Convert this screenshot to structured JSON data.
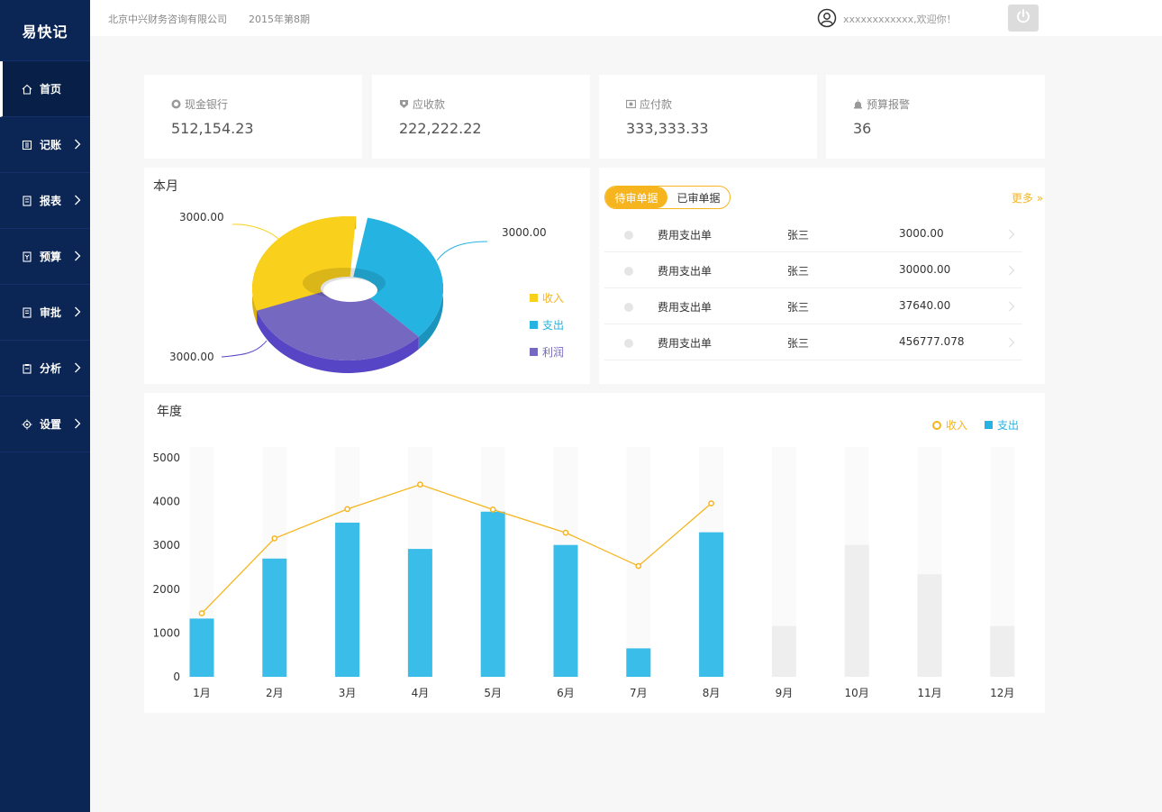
{
  "app": {
    "title": "易快记"
  },
  "sidebar": {
    "items": [
      {
        "label": "首页",
        "icon": "home-icon",
        "active": true,
        "has_chevron": false
      },
      {
        "label": "记账",
        "icon": "ledger-icon",
        "active": false,
        "has_chevron": true
      },
      {
        "label": "报表",
        "icon": "report-icon",
        "active": false,
        "has_chevron": true
      },
      {
        "label": "预算",
        "icon": "budget-icon",
        "active": false,
        "has_chevron": true
      },
      {
        "label": "审批",
        "icon": "approval-icon",
        "active": false,
        "has_chevron": true
      },
      {
        "label": "分析",
        "icon": "analysis-icon",
        "active": false,
        "has_chevron": true
      },
      {
        "label": "设置",
        "icon": "gear-icon",
        "active": false,
        "has_chevron": true
      }
    ]
  },
  "header": {
    "company": "北京中兴财务咨询有限公司",
    "period": "2015年第8期",
    "welcome": "xxxxxxxxxxxx,欢迎你！",
    "user_icon": "user-circle-icon",
    "power_icon": "power-icon"
  },
  "stats": [
    {
      "label": "现金银行",
      "value": "512,154.23",
      "icon": "coin-icon"
    },
    {
      "label": "应收款",
      "value": "222,222.22",
      "icon": "shield-icon"
    },
    {
      "label": "应付款",
      "value": "333,333.33",
      "icon": "wallet-icon"
    },
    {
      "label": "预算报警",
      "value": "36",
      "icon": "alarm-icon"
    }
  ],
  "monthly": {
    "title": "本月",
    "labels": [
      "3000.00",
      "3000.00",
      "3000.00"
    ],
    "legend": [
      "收入",
      "支出",
      "利润"
    ]
  },
  "documents": {
    "tab_pending": "待审单据",
    "tab_done": "已审单据",
    "more": "更多 »",
    "rows": [
      {
        "type": "费用支出单",
        "person": "张三",
        "amount": "3000.00"
      },
      {
        "type": "费用支出单",
        "person": "张三",
        "amount": "30000.00"
      },
      {
        "type": "费用支出单",
        "person": "张三",
        "amount": "37640.00"
      },
      {
        "type": "费用支出单",
        "person": "张三",
        "amount": "456777.078"
      }
    ]
  },
  "annual": {
    "title": "年度",
    "legend": [
      "收入",
      "支出"
    ]
  },
  "colors": {
    "sidebar": "#0b2554",
    "accent": "#f6b51e",
    "income": "#f9d01c",
    "expense": "#25b3e1",
    "profit": "#7468c0",
    "bar": "#3bbde9",
    "bar_future": "#eeeeee",
    "bar_track": "#fafafa"
  },
  "chart_data": [
    {
      "type": "pie",
      "title": "本月",
      "slices": [
        {
          "name": "收入",
          "value": 3000,
          "color": "#f9d01c"
        },
        {
          "name": "支出",
          "value": 3000,
          "color": "#25b3e1"
        },
        {
          "name": "利润",
          "value": 3000,
          "color": "#7468c0"
        }
      ],
      "data_labels": [
        "3000.00",
        "3000.00",
        "3000.00"
      ],
      "legend_position": "right"
    },
    {
      "type": "bar",
      "title": "年度",
      "categories": [
        "1月",
        "2月",
        "3月",
        "4月",
        "5月",
        "6月",
        "7月",
        "8月",
        "9月",
        "10月",
        "11月",
        "12月"
      ],
      "series": [
        {
          "name": "支出",
          "type": "bar",
          "values": [
            1330,
            2700,
            3520,
            2920,
            3770,
            3010,
            650,
            3300,
            1160,
            3010,
            2340,
            1160
          ]
        },
        {
          "name": "收入",
          "type": "line",
          "values": [
            1450,
            3160,
            3830,
            4390,
            3820,
            3290,
            2530,
            3960,
            null,
            null,
            null,
            null
          ]
        }
      ],
      "active_months": 8,
      "yticks": [
        0,
        1000,
        2000,
        3000,
        4000,
        5000
      ],
      "ylim": [
        0,
        5000
      ],
      "legend_position": "top-right"
    }
  ]
}
